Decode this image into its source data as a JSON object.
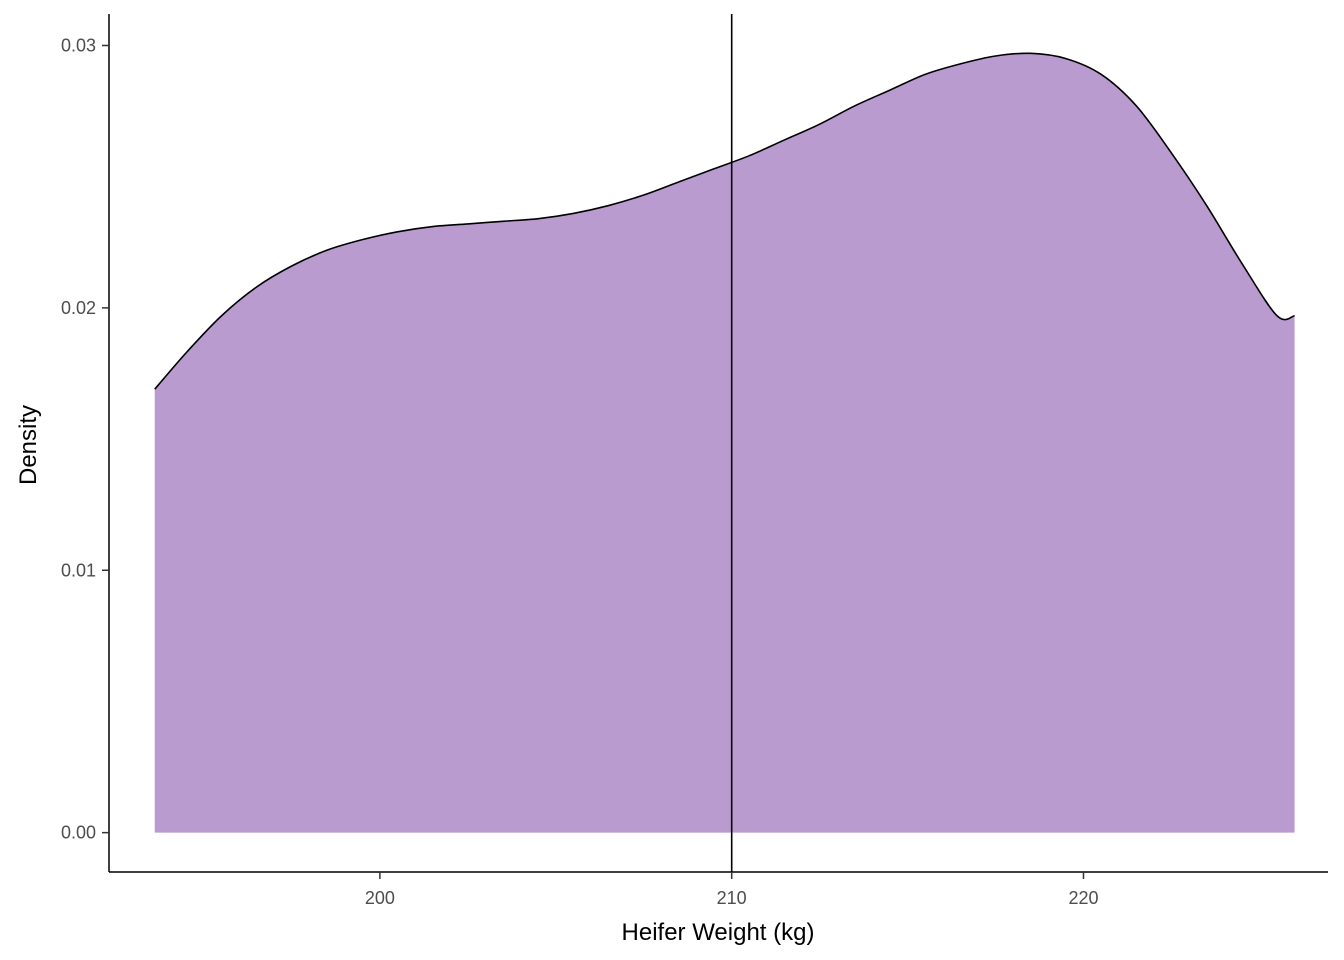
{
  "chart_data": {
    "type": "area",
    "title": "",
    "xlabel": "Heifer Weight (kg)",
    "ylabel": "Density",
    "xlim": [
      192.3,
      226.95
    ],
    "ylim": [
      -0.0015,
      0.0312
    ],
    "x_ticks": [
      {
        "value": 200,
        "label": "200"
      },
      {
        "value": 210,
        "label": "210"
      },
      {
        "value": 220,
        "label": "220"
      }
    ],
    "y_ticks": [
      {
        "value": 0.0,
        "label": "0.00"
      },
      {
        "value": 0.01,
        "label": "0.01"
      },
      {
        "value": 0.02,
        "label": "0.02"
      },
      {
        "value": 0.03,
        "label": "0.03"
      }
    ],
    "grid": false,
    "legend": "none",
    "series": [
      {
        "fill_color": "#b99bcf",
        "stroke_color": "#000000",
        "x": [
          193.6,
          194.5,
          195.5,
          196.5,
          197.5,
          198.5,
          199.5,
          200.5,
          201.5,
          202.5,
          203.5,
          204.5,
          205.5,
          206.5,
          207.5,
          208.5,
          209.5,
          210.5,
          211.5,
          212.5,
          213.5,
          214.5,
          215.5,
          216.5,
          217.5,
          218.5,
          219.5,
          220.5,
          221.5,
          222.5,
          223.5,
          224.5,
          225.5,
          226.0
        ],
        "y": [
          0.0169,
          0.0183,
          0.0197,
          0.0208,
          0.0216,
          0.0222,
          0.0226,
          0.0229,
          0.0231,
          0.0232,
          0.0233,
          0.0234,
          0.0236,
          0.0239,
          0.0243,
          0.0248,
          0.0253,
          0.0258,
          0.0264,
          0.027,
          0.0277,
          0.0283,
          0.0289,
          0.0293,
          0.0296,
          0.0297,
          0.0295,
          0.0289,
          0.0277,
          0.0259,
          0.0239,
          0.0217,
          0.0197,
          0.0197
        ]
      }
    ],
    "vline": {
      "x": 210,
      "color": "#000000"
    }
  }
}
